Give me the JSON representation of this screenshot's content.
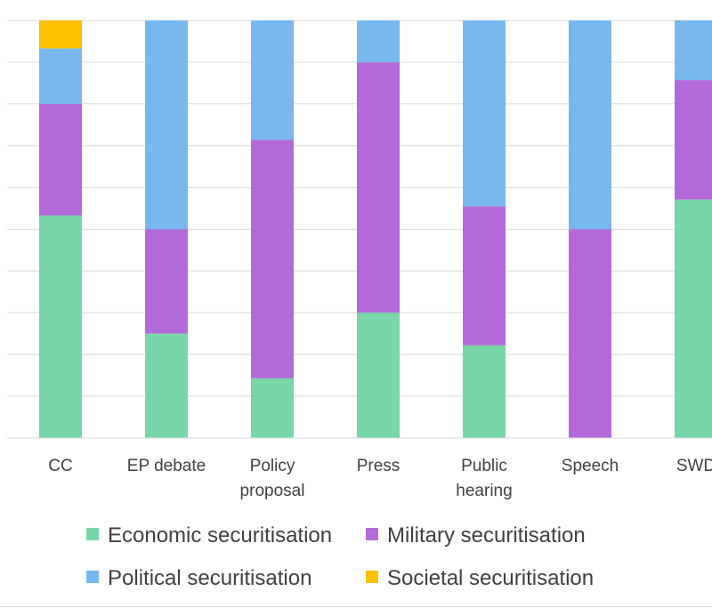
{
  "chart_data": {
    "type": "bar",
    "stacked": true,
    "percent_stacked": true,
    "categories": [
      "CC",
      "EP debate",
      "Policy\nproposal",
      "Press",
      "Public\nhearing",
      "Speech",
      "SWD"
    ],
    "series": [
      {
        "name": "Economic securitisation",
        "color": "#78D6A8",
        "values": [
          0.533,
          0.25,
          0.143,
          0.3,
          0.222,
          0.0,
          0.571
        ]
      },
      {
        "name": "Military securitisation",
        "color": "#B36AD8",
        "values": [
          0.267,
          0.25,
          0.571,
          0.6,
          0.333,
          0.5,
          0.286
        ]
      },
      {
        "name": "Political securitisation",
        "color": "#78B8EE",
        "values": [
          0.133,
          0.5,
          0.286,
          0.1,
          0.445,
          0.5,
          0.143
        ]
      },
      {
        "name": "Societal securitisation",
        "color": "#FFC000",
        "values": [
          0.067,
          0.0,
          0.0,
          0.0,
          0.0,
          0.0,
          0.0
        ]
      }
    ],
    "ylim": [
      0,
      1
    ],
    "grid": true,
    "legend_position": "bottom",
    "title": "",
    "xlabel": "",
    "ylabel": ""
  }
}
